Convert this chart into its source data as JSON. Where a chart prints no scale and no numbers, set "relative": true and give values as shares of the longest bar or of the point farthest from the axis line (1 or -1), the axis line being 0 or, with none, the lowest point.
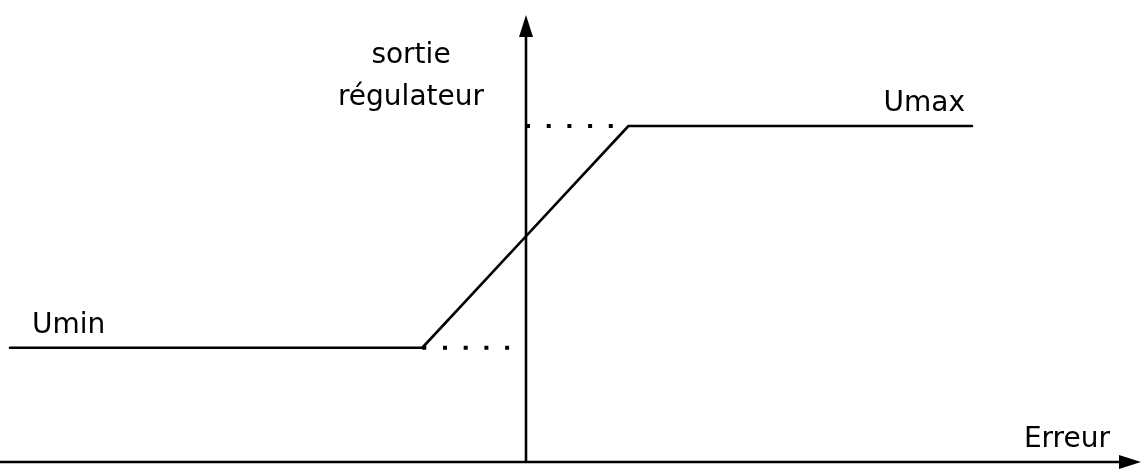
{
  "chart_data": {
    "type": "line",
    "relative": true,
    "categories": [
      null,
      null,
      null,
      null,
      null,
      null,
      null,
      null,
      null,
      null,
      null,
      null,
      null,
      null,
      null
    ],
    "series": [
      {
        "color": "#000000",
        "values": [
          0.34,
          0.34,
          0.34,
          0.34,
          0.34,
          0.34,
          0.34,
          0.56,
          0.78,
          1,
          1,
          1,
          1,
          1,
          1
        ]
      }
    ],
    "line_style": "solid",
    "xlabel": "Erreur",
    "ylabel": "sortie régulateur",
    "annotations": [
      {
        "text": "Umin",
        "y": 0.34
      },
      {
        "text": "Umax",
        "y": 1
      }
    ],
    "ref_lines": [
      {
        "axis": "y",
        "value": 0.34,
        "line_style": "dotted",
        "color": "#000000"
      },
      {
        "axis": "y",
        "value": 1,
        "line_style": "dotted",
        "color": "#000000"
      }
    ]
  }
}
